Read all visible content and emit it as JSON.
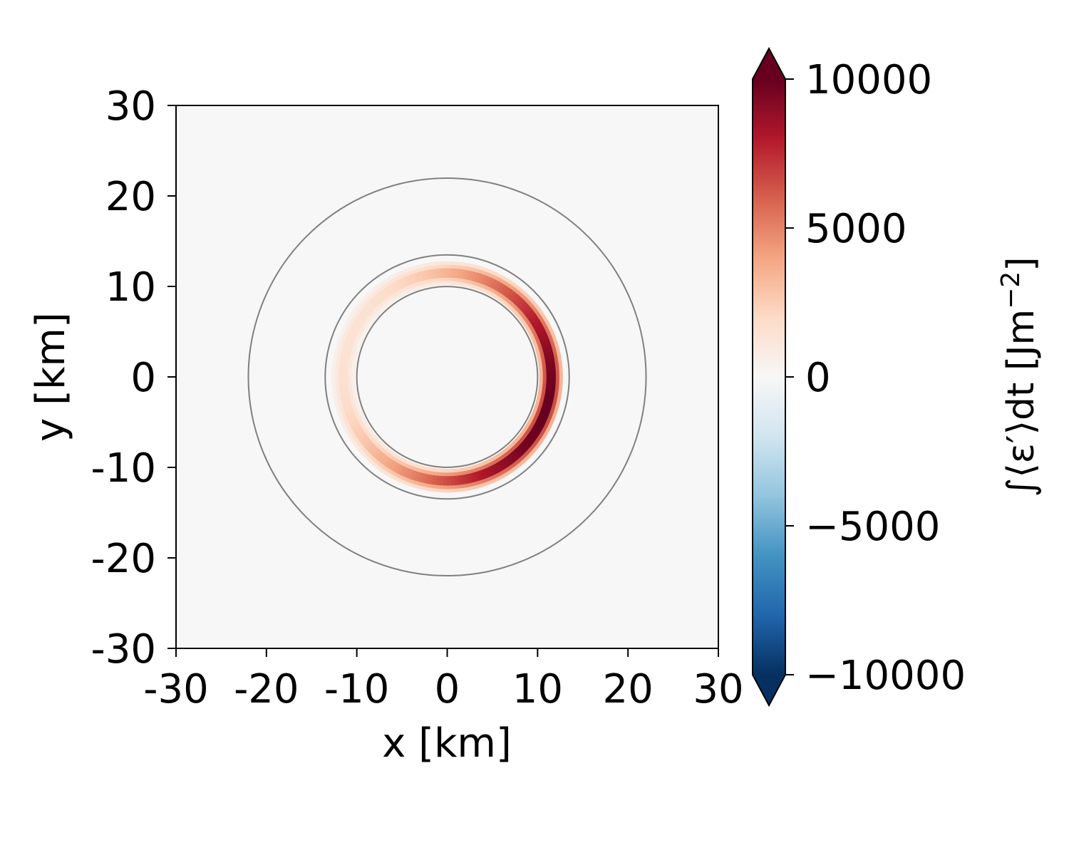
{
  "chart_data": {
    "type": "heatmap",
    "title": "",
    "xlabel": "x [km]",
    "ylabel": "y [km]",
    "xlim": [
      -30,
      30
    ],
    "ylim": [
      -30,
      30
    ],
    "x_ticks": [
      "-30",
      "-20",
      "-10",
      "0",
      "10",
      "20",
      "30"
    ],
    "y_ticks": [
      "-30",
      "-20",
      "-10",
      "0",
      "10",
      "20",
      "30"
    ],
    "background_value": 0,
    "reference_circles_km": [
      10,
      13.5,
      22
    ],
    "reference_circle_color": "#808080",
    "field": {
      "description_values": "annular band of positive values between r≈10 and r≈13.5 km, strongest on the east (+x) side",
      "ring_center_km": [
        0,
        0
      ],
      "ring_radius_km": 11.5,
      "ring_halfwidth_km": 1.3,
      "peak_value": 10000,
      "peak_azimuth_deg": -20,
      "weakest_value": 1500
    },
    "colorbar": {
      "label": "∫⟨ε′⟩dt [Jm⁻²]",
      "label_main": "∫⟨ε′⟩dt [Jm",
      "label_exp": "−2",
      "label_end": "]",
      "min": -10000,
      "max": 10000,
      "extend": "both",
      "ticks": [
        {
          "value": 10000,
          "label": "10000"
        },
        {
          "value": 5000,
          "label": "5000"
        },
        {
          "value": 0,
          "label": "0"
        },
        {
          "value": -5000,
          "label": "−5000"
        },
        {
          "value": -10000,
          "label": "−10000"
        }
      ],
      "colormap": "RdBu_r",
      "colors": [
        "#053061",
        "#2166ac",
        "#4393c3",
        "#92c5de",
        "#d1e5f0",
        "#f7f7f7",
        "#fddbc7",
        "#f4a582",
        "#d6604d",
        "#b2182b",
        "#67001f"
      ]
    }
  }
}
